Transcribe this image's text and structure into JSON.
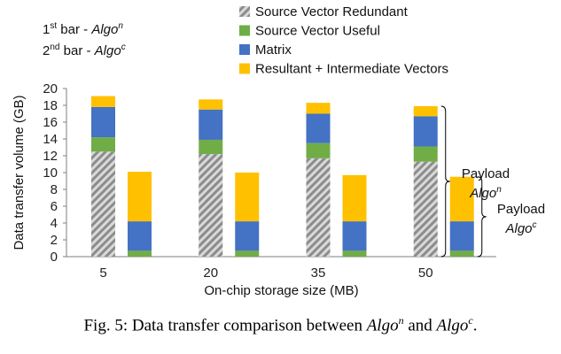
{
  "notes": {
    "first_prefix": "1",
    "first_sup": "st",
    "first_text": " bar - ",
    "first_algo": "Algo",
    "first_algo_sup": "n",
    "second_prefix": "2",
    "second_sup": "nd",
    "second_text": " bar - ",
    "second_algo": "Algo",
    "second_algo_sup": "c"
  },
  "braces": {
    "n_label": "Payload",
    "n_algo": "Algo",
    "n_sup": "n",
    "c_label": "Payload",
    "c_algo": "Algo",
    "c_sup": "c"
  },
  "caption": {
    "prefix": "Fig. 5: Data transfer comparison between ",
    "algo1": "Algo",
    "sup1": "n",
    "middle": " and ",
    "algo2": "Algo",
    "sup2": "c",
    "suffix": "."
  },
  "chart_data": {
    "type": "bar",
    "stacked": true,
    "xlabel": "On-chip storage size (MB)",
    "ylabel": "Data transfer volume (GB)",
    "ylim": [
      0,
      20
    ],
    "yticks": [
      0,
      2,
      4,
      6,
      8,
      10,
      12,
      14,
      16,
      18,
      20
    ],
    "grid": false,
    "legend_position": "top-right",
    "categories": [
      "5",
      "20",
      "35",
      "50"
    ],
    "bars_per_category": [
      "Algo^n",
      "Algo^c"
    ],
    "series": [
      {
        "name": "Source Vector Redundant",
        "color": "#a6a6a6",
        "pattern": "diagonal-hatch",
        "algo_n": [
          12.5,
          12.2,
          11.7,
          11.3
        ],
        "algo_c": [
          0,
          0,
          0,
          0
        ]
      },
      {
        "name": "Source Vector Useful",
        "color": "#70ad47",
        "algo_n": [
          1.7,
          1.7,
          1.8,
          1.8
        ],
        "algo_c": [
          0.7,
          0.7,
          0.7,
          0.7
        ]
      },
      {
        "name": "Matrix",
        "color": "#4472c4",
        "algo_n": [
          3.6,
          3.6,
          3.5,
          3.6
        ],
        "algo_c": [
          3.5,
          3.5,
          3.5,
          3.5
        ]
      },
      {
        "name": "Resultant + Intermediate Vectors",
        "color": "#ffc000",
        "algo_n": [
          1.3,
          1.2,
          1.3,
          1.2
        ],
        "algo_c": [
          5.9,
          5.8,
          5.5,
          5.3
        ]
      }
    ]
  }
}
